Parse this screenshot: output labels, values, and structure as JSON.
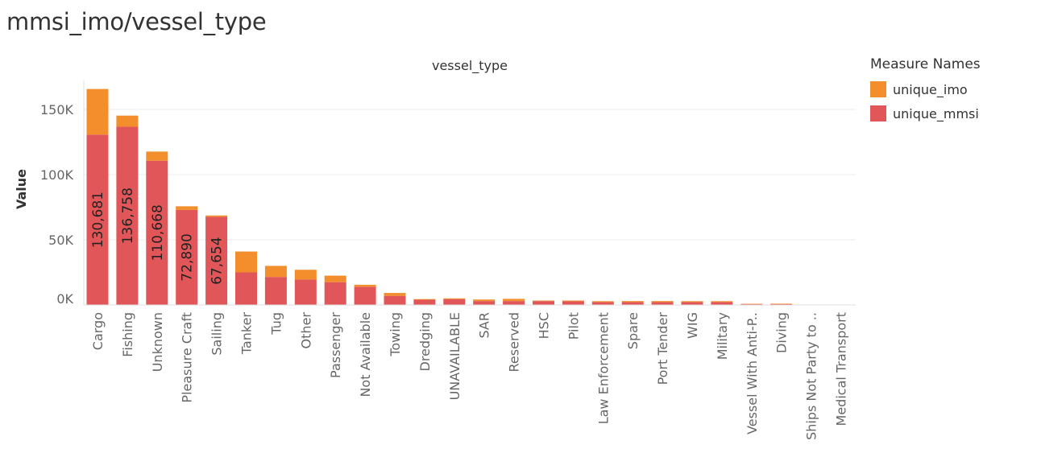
{
  "page": {
    "title": "mmsi_imo/vessel_type"
  },
  "legend": {
    "title": "Measure Names",
    "items": [
      {
        "label": "unique_imo",
        "color": "#f28e2b"
      },
      {
        "label": "unique_mmsi",
        "color": "#e15759"
      }
    ]
  },
  "chart_data": {
    "type": "bar",
    "stacked": true,
    "title": "vessel_type",
    "ylabel": "Value",
    "ylim": [
      0,
      170000
    ],
    "yticks": [
      0,
      50000,
      100000,
      150000
    ],
    "ytick_labels": [
      "0K",
      "50K",
      "100K",
      "150K"
    ],
    "grid": true,
    "legend_position": "right",
    "categories": [
      "Cargo",
      "Fishing",
      "Unknown",
      "Pleasure Craft",
      "Sailing",
      "Tanker",
      "Tug",
      "Other",
      "Passenger",
      "Not Available",
      "Towing",
      "Dredging",
      "UNAVAILABLE",
      "SAR",
      "Reserved",
      "HSC",
      "Pilot",
      "Law Enforcement",
      "Spare",
      "Port Tender",
      "WIG",
      "Military",
      "Vessel With Anti-P..",
      "Diving",
      "Ships Not Party to ..",
      "Medical Transport"
    ],
    "series": [
      {
        "name": "unique_mmsi",
        "color": "#e15759",
        "values": [
          130681,
          136758,
          110668,
          72890,
          67654,
          25000,
          21500,
          19500,
          17500,
          14000,
          7000,
          4000,
          4500,
          3000,
          3000,
          3000,
          2800,
          2200,
          2200,
          2200,
          2200,
          2200,
          600,
          600,
          150,
          100
        ]
      },
      {
        "name": "unique_imo",
        "color": "#f28e2b",
        "values": [
          35000,
          8500,
          7000,
          2800,
          1000,
          16000,
          8500,
          7500,
          5000,
          1500,
          2200,
          500,
          600,
          1200,
          1700,
          400,
          600,
          700,
          800,
          800,
          700,
          700,
          300,
          400,
          50,
          0
        ]
      }
    ],
    "data_labels": [
      {
        "category": "Cargo",
        "text": "130,681"
      },
      {
        "category": "Fishing",
        "text": "136,758"
      },
      {
        "category": "Unknown",
        "text": "110,668"
      },
      {
        "category": "Pleasure Craft",
        "text": "72,890"
      },
      {
        "category": "Sailing",
        "text": "67,654"
      }
    ]
  }
}
